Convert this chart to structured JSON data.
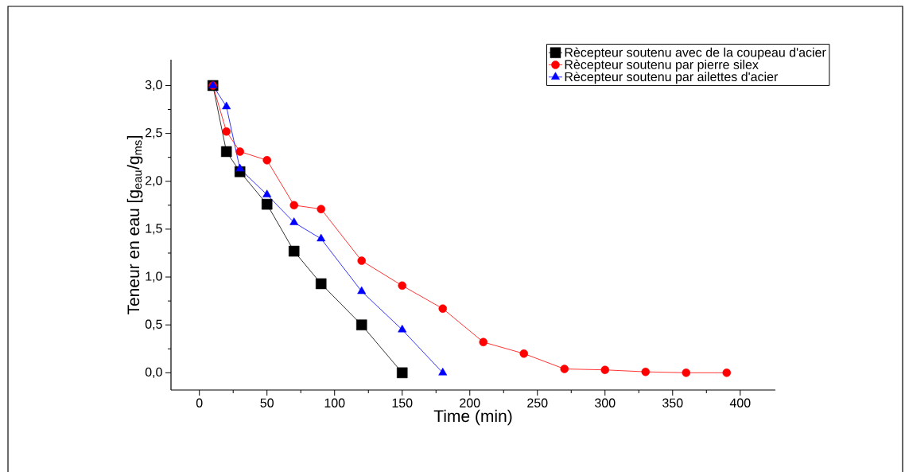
{
  "chart_data": {
    "type": "line",
    "xlabel": "Time (min)",
    "ylabel": "Teneur en eau [g$_{eau}$/g$_{ms}$]",
    "xlim": [
      -21,
      426
    ],
    "ylim": [
      -0.18,
      3.27
    ],
    "xticks": [
      0,
      50,
      100,
      150,
      200,
      250,
      300,
      350,
      400
    ],
    "yticks": [
      {
        "value": 0,
        "label": "0,0"
      },
      {
        "value": 0.5,
        "label": "0,5"
      },
      {
        "value": 1,
        "label": "1,0"
      },
      {
        "value": 1.5,
        "label": "1,5"
      },
      {
        "value": 2,
        "label": "2,0"
      },
      {
        "value": 2.5,
        "label": "2,5"
      },
      {
        "value": 3,
        "label": "3,0"
      }
    ],
    "legend": "top right",
    "grid": false,
    "series": [
      {
        "name": "Rècepteur soutenu avec de la coupeau d'acier",
        "color": "#000000",
        "marker": "square",
        "x": [
          10,
          20,
          30,
          50,
          70,
          90,
          120,
          150
        ],
        "values": [
          3.0,
          2.31,
          2.1,
          1.76,
          1.27,
          0.93,
          0.5,
          0.0
        ]
      },
      {
        "name": "Rècepteur soutenu par pierre silex",
        "color": "#ff0000",
        "marker": "circle",
        "x": [
          10,
          20,
          30,
          50,
          70,
          90,
          120,
          150,
          180,
          210,
          240,
          270,
          300,
          330,
          360,
          390
        ],
        "values": [
          3.0,
          2.52,
          2.31,
          2.22,
          1.75,
          1.71,
          1.17,
          0.91,
          0.67,
          0.32,
          0.2,
          0.04,
          0.03,
          0.01,
          0.0,
          0.0
        ]
      },
      {
        "name": "Rècepteur soutenu par ailettes d'acier",
        "color": "#0000ff",
        "marker": "triangle",
        "x": [
          10,
          20,
          30,
          50,
          70,
          90,
          120,
          150,
          180
        ],
        "values": [
          3.0,
          2.78,
          2.13,
          1.86,
          1.57,
          1.4,
          0.85,
          0.45,
          0.0
        ]
      }
    ]
  }
}
